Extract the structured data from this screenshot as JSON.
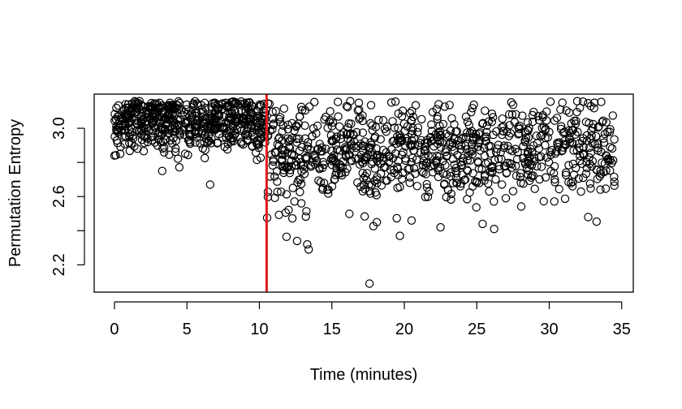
{
  "chart_data": {
    "type": "scatter",
    "title": "",
    "xlabel": "Time (minutes)",
    "ylabel": "Permutation Entropy",
    "xlim": [
      -1.4,
      35.8
    ],
    "ylim": [
      2.04,
      3.2
    ],
    "xticks": [
      0,
      5,
      10,
      15,
      20,
      25,
      30,
      35
    ],
    "xtick_labels": [
      "0",
      "5",
      "10",
      "15",
      "20",
      "25",
      "30",
      "35"
    ],
    "yticks": [
      2.2,
      2.6,
      3.0
    ],
    "ytick_labels": [
      "2.2",
      "2.6",
      "3.0"
    ],
    "yticks_unlabeled": [
      2.4,
      2.8
    ],
    "vline": {
      "x": 10.5,
      "color": "#e31a1c"
    },
    "marker": "open-circle",
    "marker_color": "#000000",
    "grid": false,
    "segments": [
      {
        "x_range": [
          0.0,
          10.5
        ],
        "n": 560,
        "center": 3.04,
        "spread": 0.09,
        "low_tail": 2.66
      },
      {
        "x_range": [
          10.5,
          13.5
        ],
        "n": 120,
        "center": 2.85,
        "spread": 0.16,
        "low_tail": 2.29
      },
      {
        "x_range": [
          13.5,
          34.5
        ],
        "n": 770,
        "center": 2.86,
        "spread": 0.14,
        "low_tail": 2.09
      }
    ],
    "outliers": [
      {
        "x": 17.6,
        "y": 2.09
      },
      {
        "x": 12.6,
        "y": 2.34
      },
      {
        "x": 13.3,
        "y": 2.32
      },
      {
        "x": 13.4,
        "y": 2.29
      },
      {
        "x": 6.6,
        "y": 2.67
      },
      {
        "x": 18.1,
        "y": 2.45
      },
      {
        "x": 19.7,
        "y": 2.37
      },
      {
        "x": 22.5,
        "y": 2.42
      },
      {
        "x": 26.2,
        "y": 2.41
      },
      {
        "x": 25.4,
        "y": 2.44
      },
      {
        "x": 20.5,
        "y": 2.46
      },
      {
        "x": 0.0,
        "y": 2.84
      },
      {
        "x": 0.4,
        "y": 2.85
      }
    ]
  }
}
